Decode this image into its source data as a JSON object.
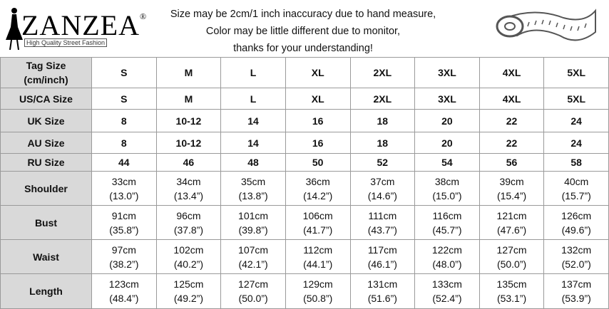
{
  "header": {
    "logo": "ZANZEA",
    "logo_mark": "®",
    "tagline": "High Quality Street Fashion",
    "notice": [
      "Size may be 2cm/1 inch inaccuracy due to hand measure,",
      "Color may be little different due to monitor,",
      "thanks for your understanding!"
    ]
  },
  "table": {
    "rows": [
      {
        "label": [
          "Tag Size",
          "(cm/inch)"
        ],
        "cells": [
          [
            "S"
          ],
          [
            "M"
          ],
          [
            "L"
          ],
          [
            "XL"
          ],
          [
            "2XL"
          ],
          [
            "3XL"
          ],
          [
            "4XL"
          ],
          [
            "5XL"
          ]
        ]
      },
      {
        "label": [
          "US/CA Size"
        ],
        "cells": [
          [
            "S"
          ],
          [
            "M"
          ],
          [
            "L"
          ],
          [
            "XL"
          ],
          [
            "2XL"
          ],
          [
            "3XL"
          ],
          [
            "4XL"
          ],
          [
            "5XL"
          ]
        ]
      },
      {
        "label": [
          "UK Size"
        ],
        "cells": [
          [
            "8"
          ],
          [
            "10-12"
          ],
          [
            "14"
          ],
          [
            "16"
          ],
          [
            "18"
          ],
          [
            "20"
          ],
          [
            "22"
          ],
          [
            "24"
          ]
        ]
      },
      {
        "label": [
          "AU Size"
        ],
        "cells": [
          [
            "8"
          ],
          [
            "10-12"
          ],
          [
            "14"
          ],
          [
            "16"
          ],
          [
            "18"
          ],
          [
            "20"
          ],
          [
            "22"
          ],
          [
            "24"
          ]
        ]
      },
      {
        "label": [
          "RU Size"
        ],
        "cells": [
          [
            "44"
          ],
          [
            "46"
          ],
          [
            "48"
          ],
          [
            "50"
          ],
          [
            "52"
          ],
          [
            "54"
          ],
          [
            "56"
          ],
          [
            "58"
          ]
        ]
      },
      {
        "label": [
          "Shoulder"
        ],
        "cells": [
          [
            "33cm",
            "(13.0”)"
          ],
          [
            "34cm",
            "(13.4”)"
          ],
          [
            "35cm",
            "(13.8”)"
          ],
          [
            "36cm",
            "(14.2”)"
          ],
          [
            "37cm",
            "(14.6”)"
          ],
          [
            "38cm",
            "(15.0”)"
          ],
          [
            "39cm",
            "(15.4”)"
          ],
          [
            "40cm",
            "(15.7”)"
          ]
        ]
      },
      {
        "label": [
          "Bust"
        ],
        "cells": [
          [
            "91cm",
            "(35.8”)"
          ],
          [
            "96cm",
            "(37.8”)"
          ],
          [
            "101cm",
            "(39.8”)"
          ],
          [
            "106cm",
            "(41.7”)"
          ],
          [
            "111cm",
            "(43.7”)"
          ],
          [
            "116cm",
            "(45.7”)"
          ],
          [
            "121cm",
            "(47.6”)"
          ],
          [
            "126cm",
            "(49.6”)"
          ]
        ]
      },
      {
        "label": [
          "Waist"
        ],
        "cells": [
          [
            "97cm",
            "(38.2”)"
          ],
          [
            "102cm",
            "(40.2”)"
          ],
          [
            "107cm",
            "(42.1”)"
          ],
          [
            "112cm",
            "(44.1”)"
          ],
          [
            "117cm",
            "(46.1”)"
          ],
          [
            "122cm",
            "(48.0”)"
          ],
          [
            "127cm",
            "(50.0”)"
          ],
          [
            "132cm",
            "(52.0”)"
          ]
        ]
      },
      {
        "label": [
          "Length"
        ],
        "cells": [
          [
            "123cm",
            "(48.4”)"
          ],
          [
            "125cm",
            "(49.2”)"
          ],
          [
            "127cm",
            "(50.0”)"
          ],
          [
            "129cm",
            "(50.8”)"
          ],
          [
            "131cm",
            "(51.6”)"
          ],
          [
            "133cm",
            "(52.4”)"
          ],
          [
            "135cm",
            "(53.1”)"
          ],
          [
            "137cm",
            "(53.9”)"
          ]
        ]
      }
    ]
  }
}
